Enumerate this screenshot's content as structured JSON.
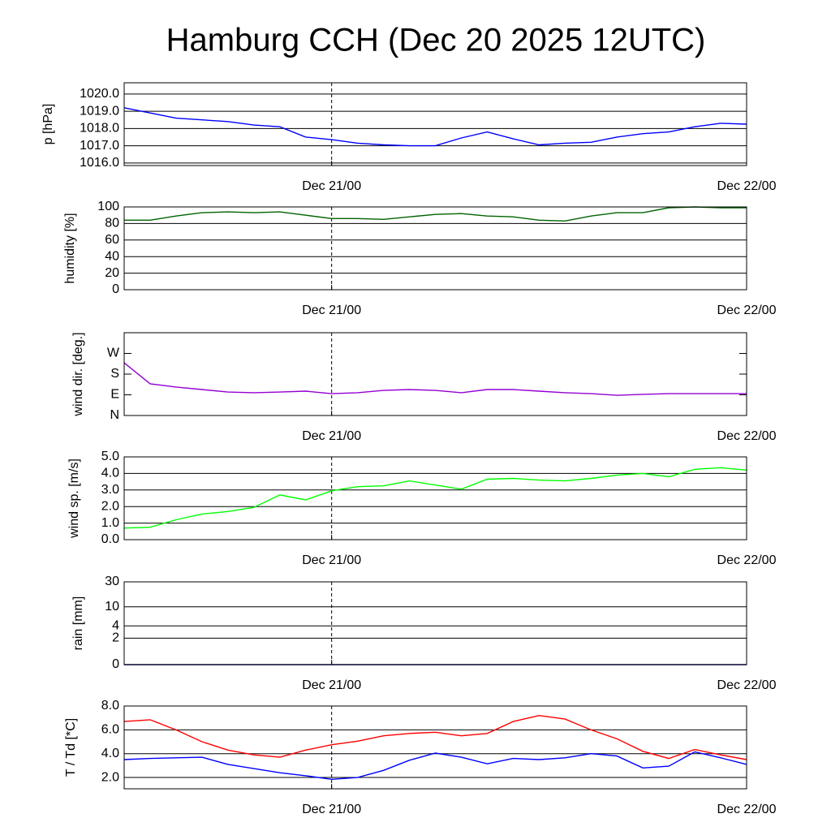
{
  "title": "Hamburg CCH (Dec 20 2025 12UTC)",
  "chart_data": [
    {
      "type": "line",
      "ylabel": "p [hPa]",
      "x": [
        0,
        1.5,
        3,
        4.5,
        6,
        7.5,
        9,
        10.5,
        12,
        13.5,
        15,
        16.5,
        18,
        19.5,
        21,
        22.5,
        24,
        25.5,
        27,
        28.5,
        30,
        31.5,
        33,
        34.5,
        36
      ],
      "xlim": [
        0,
        36
      ],
      "xticks": [
        {
          "value": 12,
          "label": "Dec 21/00"
        },
        {
          "value": 36,
          "label": "Dec 22/00"
        }
      ],
      "ylim": [
        1015.85,
        1020.65
      ],
      "yticks": [
        {
          "value": 1016,
          "label": "1016.0"
        },
        {
          "value": 1017,
          "label": "1017.0"
        },
        {
          "value": 1018,
          "label": "1018.0"
        },
        {
          "value": 1019,
          "label": "1019.0"
        },
        {
          "value": 1020,
          "label": "1020.0"
        }
      ],
      "grid": true,
      "series": [
        {
          "color": "#0000ff",
          "values": [
            1019.2,
            1018.9,
            1018.6,
            1018.5,
            1018.4,
            1018.2,
            1018.1,
            1017.5,
            1017.35,
            1017.15,
            1017.05,
            1017.0,
            1017.0,
            1017.45,
            1017.8,
            1017.4,
            1017.05,
            1017.15,
            1017.2,
            1017.5,
            1017.7,
            1017.8,
            1018.1,
            1018.3,
            1018.25
          ]
        }
      ]
    },
    {
      "type": "line",
      "ylabel": "humidity [%]",
      "x": [
        0,
        1.5,
        3,
        4.5,
        6,
        7.5,
        9,
        10.5,
        12,
        13.5,
        15,
        16.5,
        18,
        19.5,
        21,
        22.5,
        24,
        25.5,
        27,
        28.5,
        30,
        31.5,
        33,
        34.5,
        36
      ],
      "xlim": [
        0,
        36
      ],
      "xticks": [
        {
          "value": 12,
          "label": "Dec 21/00"
        },
        {
          "value": 36,
          "label": "Dec 22/00"
        }
      ],
      "ylim": [
        0,
        100
      ],
      "yticks": [
        0,
        20,
        40,
        60,
        80,
        100
      ],
      "grid": true,
      "series": [
        {
          "color": "#006400",
          "values": [
            84,
            84,
            89,
            93,
            94,
            93,
            94,
            90,
            86,
            86,
            85,
            88,
            91,
            92,
            89,
            88,
            84,
            83,
            89,
            93,
            93,
            99,
            100,
            99,
            99
          ]
        }
      ]
    },
    {
      "type": "line",
      "ylabel": "wind dir. [deg.]",
      "x": [
        0,
        1.5,
        3,
        4.5,
        6,
        7.5,
        9,
        10.5,
        12,
        13.5,
        15,
        16.5,
        18,
        19.5,
        21,
        22.5,
        24,
        25.5,
        27,
        28.5,
        30,
        31.5,
        33,
        34.5,
        36
      ],
      "xlim": [
        0,
        36
      ],
      "xticks": [
        {
          "value": 12,
          "label": "Dec 21/00"
        },
        {
          "value": 36,
          "label": "Dec 22/00"
        }
      ],
      "ylim": [
        0,
        360
      ],
      "yticks": [
        {
          "value": 0,
          "label": "N"
        },
        {
          "value": 90,
          "label": "E"
        },
        {
          "value": 180,
          "label": "S"
        },
        {
          "value": 270,
          "label": "W"
        }
      ],
      "grid": false,
      "series": [
        {
          "color": "#9400d3",
          "values": [
            229,
            138,
            124,
            113,
            102,
            99,
            102,
            106,
            95,
            99,
            109,
            113,
            109,
            99,
            113,
            113,
            106,
            99,
            95,
            88,
            92,
            95,
            95,
            95,
            95
          ]
        }
      ]
    },
    {
      "type": "line",
      "ylabel": "wind sp. [m/s]",
      "x": [
        0,
        1.5,
        3,
        4.5,
        6,
        7.5,
        9,
        10.5,
        12,
        13.5,
        15,
        16.5,
        18,
        19.5,
        21,
        22.5,
        24,
        25.5,
        27,
        28.5,
        30,
        31.5,
        33,
        34.5,
        36
      ],
      "xlim": [
        0,
        36
      ],
      "xticks": [
        {
          "value": 12,
          "label": "Dec 21/00"
        },
        {
          "value": 36,
          "label": "Dec 22/00"
        }
      ],
      "ylim": [
        0,
        5
      ],
      "yticks": [
        {
          "value": 0,
          "label": "0.0"
        },
        {
          "value": 1,
          "label": "1.0"
        },
        {
          "value": 2,
          "label": "2.0"
        },
        {
          "value": 3,
          "label": "3.0"
        },
        {
          "value": 4,
          "label": "4.0"
        },
        {
          "value": 5,
          "label": "5.0"
        }
      ],
      "grid": true,
      "series": [
        {
          "color": "#00ff00",
          "values": [
            0.7,
            0.75,
            1.2,
            1.55,
            1.7,
            1.95,
            2.7,
            2.4,
            2.95,
            3.2,
            3.25,
            3.55,
            3.3,
            3.05,
            3.65,
            3.7,
            3.6,
            3.55,
            3.7,
            3.9,
            4.0,
            3.8,
            4.25,
            4.35,
            4.2
          ]
        }
      ]
    },
    {
      "type": "line",
      "ylabel": "rain [mm]",
      "yscale": "log1p",
      "x": [
        0,
        1.5,
        3,
        4.5,
        6,
        7.5,
        9,
        10.5,
        12,
        13.5,
        15,
        16.5,
        18,
        19.5,
        21,
        22.5,
        24,
        25.5,
        27,
        28.5,
        30,
        31.5,
        33,
        34.5,
        36
      ],
      "xlim": [
        0,
        36
      ],
      "xticks": [
        {
          "value": 12,
          "label": "Dec 21/00"
        },
        {
          "value": 36,
          "label": "Dec 22/00"
        }
      ],
      "ylim": [
        0,
        30
      ],
      "yticks": [
        0,
        2,
        4,
        10,
        30
      ],
      "grid": true,
      "series": [
        {
          "color": "#00008b",
          "values": [
            0,
            0,
            0,
            0,
            0,
            0,
            0,
            0,
            0,
            0,
            0,
            0,
            0,
            0,
            0,
            0,
            0,
            0,
            0,
            0,
            0,
            0,
            0,
            0,
            0
          ]
        }
      ]
    },
    {
      "type": "line",
      "ylabel": "T / Td [*C]",
      "x": [
        0,
        1.5,
        3,
        4.5,
        6,
        7.5,
        9,
        10.5,
        12,
        13.5,
        15,
        16.5,
        18,
        19.5,
        21,
        22.5,
        24,
        25.5,
        27,
        28.5,
        30,
        31.5,
        33,
        34.5,
        36
      ],
      "xlim": [
        0,
        36
      ],
      "xticks": [
        {
          "value": 12,
          "label": "Dec 21/00"
        },
        {
          "value": 36,
          "label": "Dec 22/00"
        }
      ],
      "ylim": [
        1.05,
        8.0
      ],
      "yticks": [
        {
          "value": 2,
          "label": "2.0"
        },
        {
          "value": 4,
          "label": "4.0"
        },
        {
          "value": 6,
          "label": "6.0"
        },
        {
          "value": 8,
          "label": "8.0"
        }
      ],
      "grid": true,
      "series": [
        {
          "color": "#ff0000",
          "values": [
            6.7,
            6.85,
            6.0,
            5.0,
            4.3,
            3.9,
            3.7,
            4.3,
            4.75,
            5.05,
            5.5,
            5.7,
            5.8,
            5.5,
            5.7,
            6.7,
            7.2,
            6.9,
            6.0,
            5.25,
            4.2,
            3.6,
            4.35,
            3.9,
            3.5
          ]
        },
        {
          "color": "#0000ff",
          "values": [
            3.5,
            3.6,
            3.65,
            3.7,
            3.1,
            2.75,
            2.4,
            2.15,
            1.85,
            2.0,
            2.6,
            3.45,
            4.05,
            3.7,
            3.15,
            3.6,
            3.5,
            3.65,
            4.0,
            3.8,
            2.8,
            2.95,
            4.15,
            3.65,
            3.1
          ]
        }
      ]
    }
  ]
}
